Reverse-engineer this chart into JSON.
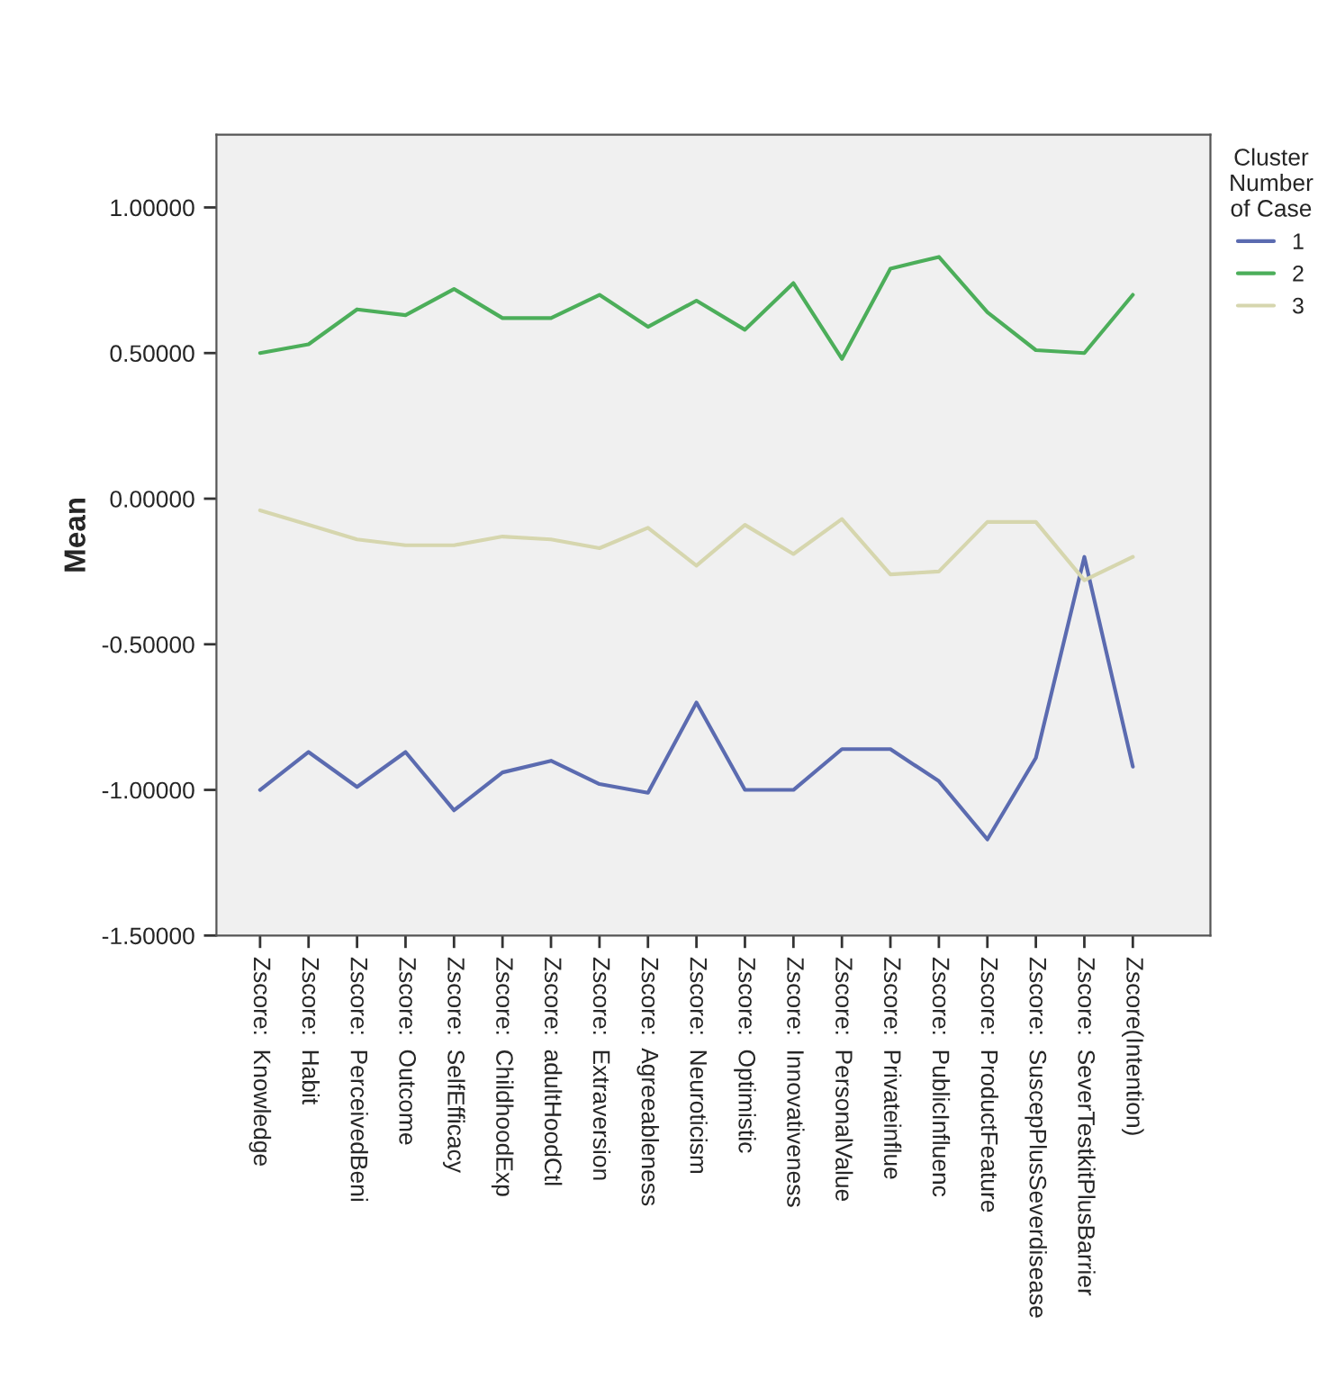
{
  "chart_data": {
    "type": "line",
    "ylabel": "Mean",
    "legend_title": "Cluster\nNumber\nof Case",
    "legend": "top right",
    "grid": false,
    "ylim": [
      -1.5,
      1.25
    ],
    "yticks": [
      {
        "value": 1.0,
        "label": "1.00000"
      },
      {
        "value": 0.5,
        "label": "0.50000"
      },
      {
        "value": 0.0,
        "label": "0.00000"
      },
      {
        "value": -0.5,
        "label": "-0.50000"
      },
      {
        "value": -1.0,
        "label": "-1.00000"
      },
      {
        "value": -1.5,
        "label": "-1.50000"
      }
    ],
    "categories": [
      "Zscore:  Knowledge",
      "Zscore:  Habit",
      "Zscore:  PerceivedBeni",
      "Zscore:  Outcome",
      "Zscore:  SelfEfficacy",
      "Zscore:  ChildhoodExp",
      "Zscore:  adultHoodCtl",
      "Zscore:  Extraversion",
      "Zscore:  Agreeableness",
      "Zscore:  Neuroticism",
      "Zscore:  Optimistic",
      "Zscore:  Innovativeness",
      "Zscore:  PersonalValue",
      "Zscore:  Privateinflue",
      "Zscore:  PublicInfluenc",
      "Zscore:  ProductFeature",
      "Zscore:  SuscepPlusSeverdisease",
      "Zscore:  SeverTestkitPlusBarrier",
      "Zscore(Intention)"
    ],
    "series": [
      {
        "name": "1",
        "color": "#5b6bb0",
        "values": [
          -1.0,
          -0.87,
          -0.99,
          -0.87,
          -1.07,
          -0.94,
          -0.9,
          -0.98,
          -1.01,
          -0.7,
          -1.0,
          -1.0,
          -0.86,
          -0.86,
          -0.97,
          -1.17,
          -0.89,
          -0.2,
          -0.92
        ]
      },
      {
        "name": "2",
        "color": "#4cae5a",
        "values": [
          0.5,
          0.53,
          0.65,
          0.63,
          0.72,
          0.62,
          0.62,
          0.7,
          0.59,
          0.68,
          0.58,
          0.74,
          0.48,
          0.79,
          0.83,
          0.64,
          0.51,
          0.5,
          0.7
        ]
      },
      {
        "name": "3",
        "color": "#d6d6ae",
        "values": [
          -0.04,
          -0.09,
          -0.14,
          -0.16,
          -0.16,
          -0.13,
          -0.14,
          -0.17,
          -0.1,
          -0.23,
          -0.09,
          -0.19,
          -0.07,
          -0.26,
          -0.25,
          -0.08,
          -0.08,
          -0.28,
          -0.2
        ]
      }
    ]
  }
}
